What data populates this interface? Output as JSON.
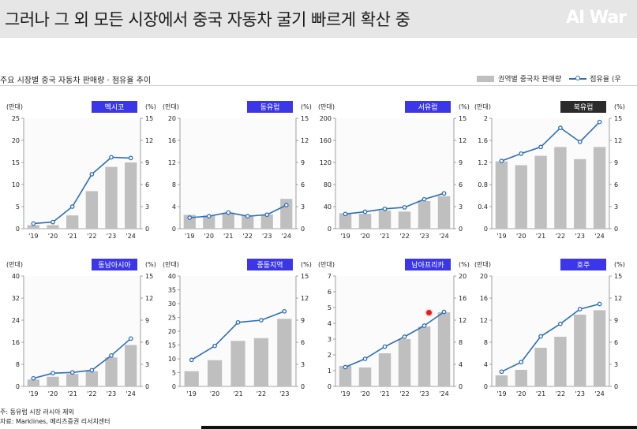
{
  "header": {
    "title": "그러나 그 외 모든 시장에서 중국 자동차 굴기 빠르게 확산 중",
    "logo": "AI War"
  },
  "subtitle": "주요 시장별 중국 자동차 판매량 · 점유율 추이",
  "legend": {
    "bar_label": "권역별 중국차 판매량",
    "line_label": "점유율 (우"
  },
  "footnotes": {
    "note": "주: 동유럽 시장 러시아 제외",
    "source": "자료: Marklines, 메리츠증권 리서치센터"
  },
  "colors": {
    "bar": "#bfbfbf",
    "line": "#2e6fb5",
    "badge_default": "#3b37e8",
    "badge_dark": "#2b2b2b"
  },
  "chart_data": [
    {
      "type": "bar",
      "region": "멕시코",
      "badge_style": "default",
      "left_unit": "(만대)",
      "right_unit": "(%)",
      "categories": [
        "'19",
        "'20",
        "'21",
        "'22",
        "'23",
        "'24"
      ],
      "left_ticks": [
        "0",
        "5",
        "10",
        "15",
        "20",
        "25"
      ],
      "ylim": [
        0,
        25
      ],
      "right_ticks": [
        "0",
        "3",
        "6",
        "9",
        "12",
        "15"
      ],
      "y2lim": [
        0,
        15
      ],
      "bar_values": [
        0.8,
        0.8,
        3,
        8.5,
        14,
        15
      ],
      "line_values": [
        0.7,
        0.9,
        3.0,
        7.4,
        9.7,
        9.6
      ]
    },
    {
      "type": "bar",
      "region": "동유럽",
      "badge_style": "default",
      "left_unit": "(만대)",
      "right_unit": "(%)",
      "categories": [
        "'19",
        "'20",
        "'21",
        "'22",
        "'23",
        "'24"
      ],
      "left_ticks": [
        "0",
        "4",
        "8",
        "12",
        "16",
        "20"
      ],
      "ylim": [
        0,
        20
      ],
      "right_ticks": [
        "0",
        "3",
        "6",
        "9",
        "12",
        "15"
      ],
      "y2lim": [
        0,
        15
      ],
      "bar_values": [
        2.5,
        2.4,
        2.9,
        2.3,
        2.6,
        5.4
      ],
      "line_values": [
        1.5,
        1.7,
        2.2,
        1.7,
        1.9,
        3.2
      ]
    },
    {
      "type": "bar",
      "region": "서유럽",
      "badge_style": "default",
      "left_unit": "(만대)",
      "right_unit": "(%)",
      "categories": [
        "'19",
        "'20",
        "'21",
        "'22",
        "'23",
        "'24"
      ],
      "left_ticks": [
        "0",
        "40",
        "80",
        "120",
        "160",
        "200"
      ],
      "ylim": [
        0,
        200
      ],
      "right_ticks": [
        "0",
        "3",
        "6",
        "9",
        "12",
        "15"
      ],
      "y2lim": [
        0,
        15
      ],
      "bar_values": [
        28,
        27,
        33,
        31,
        50,
        59
      ],
      "line_values": [
        2.0,
        2.3,
        2.7,
        2.9,
        4.0,
        4.8
      ]
    },
    {
      "type": "bar",
      "region": "북유럽",
      "badge_style": "dark",
      "left_unit": "(만대)",
      "right_unit": "(%)",
      "categories": [
        "'19",
        "'20",
        "'21",
        "'22",
        "'23",
        "'24"
      ],
      "left_ticks": [
        "0",
        "0.4",
        "0.8",
        "1.2",
        "1.6",
        "2"
      ],
      "ylim": [
        0,
        2
      ],
      "right_ticks": [
        "0",
        "3",
        "6",
        "9",
        "12",
        "15"
      ],
      "y2lim": [
        0,
        15
      ],
      "bar_values": [
        1.22,
        1.15,
        1.32,
        1.48,
        1.26,
        1.48
      ],
      "line_values": [
        9.2,
        10.2,
        11.1,
        13.7,
        11.8,
        14.5
      ]
    },
    {
      "type": "bar",
      "region": "동남아시아",
      "badge_style": "default",
      "left_unit": "(만대)",
      "right_unit": "(%)",
      "categories": [
        "'19",
        "'20",
        "'21",
        "'22",
        "'23",
        "'24"
      ],
      "left_ticks": [
        "0",
        "8",
        "16",
        "24",
        "32",
        "40"
      ],
      "ylim": [
        0,
        40
      ],
      "right_ticks": [
        "0",
        "3",
        "6",
        "9",
        "12",
        "15"
      ],
      "y2lim": [
        0,
        15
      ],
      "bar_values": [
        2.5,
        3.5,
        4.5,
        5.5,
        10.5,
        15
      ],
      "line_values": [
        1.1,
        1.8,
        1.9,
        2.2,
        4.2,
        6.5
      ]
    },
    {
      "type": "bar",
      "region": "중동지역",
      "badge_style": "default",
      "left_unit": "(만대)",
      "right_unit": "(%)",
      "categories": [
        "'19",
        "'20",
        "'21",
        "'22",
        "'23"
      ],
      "left_ticks": [
        "0",
        "5",
        "10",
        "15",
        "20",
        "25",
        "30",
        "35",
        "40"
      ],
      "ylim": [
        0,
        40
      ],
      "right_ticks": [
        "0",
        "3",
        "6",
        "9",
        "12",
        "15"
      ],
      "y2lim": [
        0,
        15
      ],
      "bar_values": [
        5.5,
        9.5,
        16.5,
        17.5,
        24.5
      ],
      "line_values": [
        3.6,
        5.5,
        8.7,
        9.0,
        10.2
      ]
    },
    {
      "type": "bar",
      "region": "남아프리카",
      "badge_style": "default",
      "left_unit": "(만대)",
      "right_unit": "(%)",
      "categories": [
        "'19",
        "'20",
        "'21",
        "'22",
        "'23",
        "'24"
      ],
      "left_ticks": [
        "0",
        "1",
        "2",
        "3",
        "4",
        "5",
        "6",
        "7"
      ],
      "ylim": [
        0,
        7
      ],
      "right_ticks": [
        "0",
        "4",
        "8",
        "12",
        "16",
        "20"
      ],
      "y2lim": [
        0,
        20
      ],
      "bar_values": [
        1.3,
        1.2,
        2.1,
        3.0,
        3.8,
        4.7
      ],
      "line_values": [
        3.5,
        5.0,
        7.2,
        9.0,
        11.0,
        13.5
      ]
    },
    {
      "type": "bar",
      "region": "호주",
      "badge_style": "default",
      "left_unit": "(만대)",
      "right_unit": "(%)",
      "categories": [
        "'19",
        "'20",
        "'21",
        "'22",
        "'23",
        "'24"
      ],
      "left_ticks": [
        "0",
        "4",
        "8",
        "12",
        "16",
        "20"
      ],
      "ylim": [
        0,
        20
      ],
      "right_ticks": [
        "0",
        "3",
        "6",
        "9",
        "12",
        "15"
      ],
      "y2lim": [
        0,
        15
      ],
      "bar_values": [
        2,
        3,
        7,
        9,
        13,
        13.8
      ],
      "line_values": [
        2.0,
        3.3,
        6.8,
        8.5,
        10.5,
        11.2
      ]
    }
  ]
}
